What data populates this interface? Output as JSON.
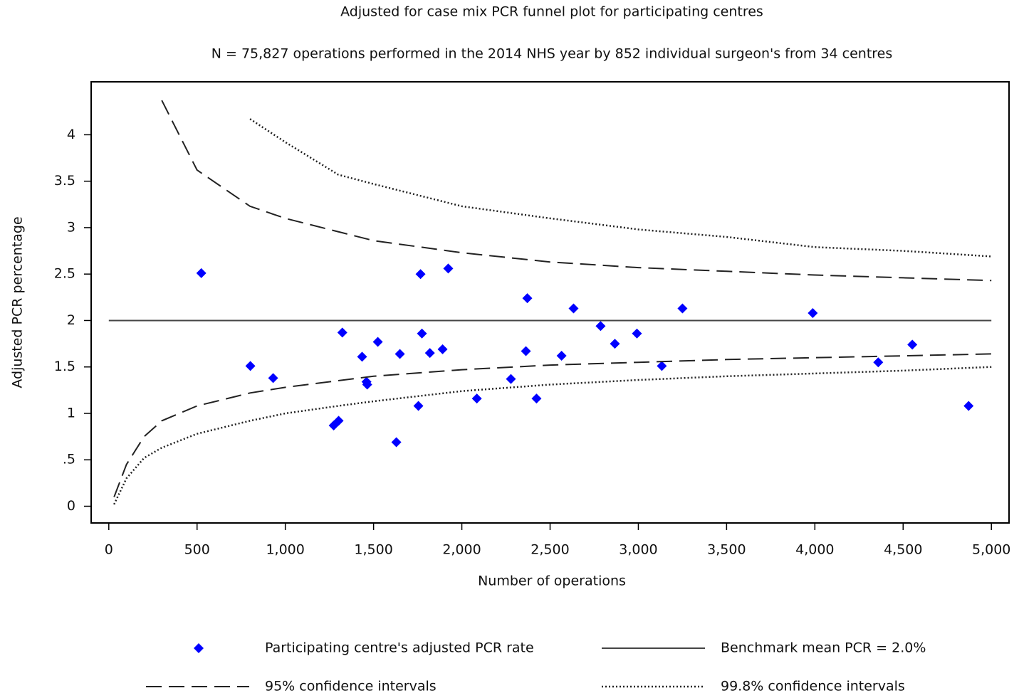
{
  "chart_data": {
    "type": "scatter",
    "title": "Adjusted for case mix PCR funnel plot for participating centres",
    "subtitle": "N = 75,827 operations performed in the 2014 NHS year by 852 individual surgeon's from 34 centres",
    "x_label": "Number of operations",
    "y_label": "Adjusted PCR percentage",
    "xlim": [
      -100,
      5100
    ],
    "ylim": [
      -0.18,
      4.57
    ],
    "xticks": [
      0,
      500,
      {
        "value": 1000,
        "label": "1,000"
      },
      {
        "value": 1500,
        "label": "1,500"
      },
      {
        "value": 2000,
        "label": "2,000"
      },
      {
        "value": 2500,
        "label": "2,500"
      },
      {
        "value": 3000,
        "label": "3,000"
      },
      {
        "value": 3500,
        "label": "3,500"
      },
      {
        "value": 4000,
        "label": "4,000"
      },
      {
        "value": 4500,
        "label": "4,500"
      },
      {
        "value": 5000,
        "label": "5,000"
      }
    ],
    "yticks": [
      0,
      {
        "value": 0.5,
        "label": ".5"
      },
      1,
      1.5,
      2,
      2.5,
      3,
      3.5,
      4
    ],
    "series": [
      {
        "name": "Participating centre's adjusted PCR rate",
        "style": "markers",
        "color": "#0000ff",
        "x": [
          524,
          802,
          931,
          1274,
          1302,
          1323,
          1435,
          1460,
          1464,
          1524,
          1629,
          1649,
          1754,
          1766,
          1774,
          1819,
          1891,
          1923,
          2085,
          2278,
          2363,
          2371,
          2423,
          2565,
          2633,
          2786,
          2867,
          2992,
          3133,
          3250,
          3988,
          4359,
          4552,
          4871
        ],
        "values": [
          2.51,
          1.51,
          1.38,
          0.87,
          0.92,
          1.87,
          1.61,
          1.34,
          1.31,
          1.77,
          0.69,
          1.64,
          1.08,
          2.5,
          1.86,
          1.65,
          1.69,
          2.56,
          1.16,
          1.37,
          1.67,
          2.24,
          1.16,
          1.62,
          2.13,
          1.94,
          1.75,
          1.86,
          1.51,
          2.13,
          2.08,
          1.55,
          1.74,
          1.08
        ]
      },
      {
        "name": "Benchmark mean PCR = 2.0%",
        "style": "solid",
        "color": "#444444",
        "x": [
          0,
          5000
        ],
        "values": [
          2,
          2
        ]
      },
      {
        "name": "95% confidence intervals",
        "style": "dashed",
        "color": "#222222",
        "x": [
          30,
          100,
          200,
          300,
          500,
          800,
          1000,
          1500,
          2000,
          2500,
          3000,
          3500,
          4000,
          4500,
          5000
        ],
        "upper": [
          null,
          null,
          null,
          4.37,
          3.62,
          3.23,
          3.1,
          2.86,
          2.73,
          2.63,
          2.57,
          2.53,
          2.49,
          2.46,
          2.43
        ],
        "lower": [
          0.1,
          0.45,
          0.75,
          0.92,
          1.08,
          1.22,
          1.28,
          1.4,
          1.47,
          1.52,
          1.55,
          1.58,
          1.6,
          1.62,
          1.64
        ]
      },
      {
        "name": "99.8% confidence intervals",
        "style": "dotted",
        "color": "#222222",
        "x": [
          30,
          100,
          200,
          300,
          500,
          800,
          1000,
          1300,
          1500,
          2000,
          2500,
          3000,
          3500,
          4000,
          4500,
          5000
        ],
        "upper": [
          null,
          null,
          null,
          null,
          null,
          4.17,
          3.92,
          3.57,
          3.47,
          3.23,
          3.1,
          2.98,
          2.9,
          2.79,
          2.75,
          2.69
        ],
        "lower": [
          0.02,
          0.3,
          0.52,
          0.63,
          0.78,
          0.92,
          1.0,
          1.08,
          1.13,
          1.24,
          1.31,
          1.36,
          1.4,
          1.43,
          1.46,
          1.5
        ]
      }
    ]
  }
}
